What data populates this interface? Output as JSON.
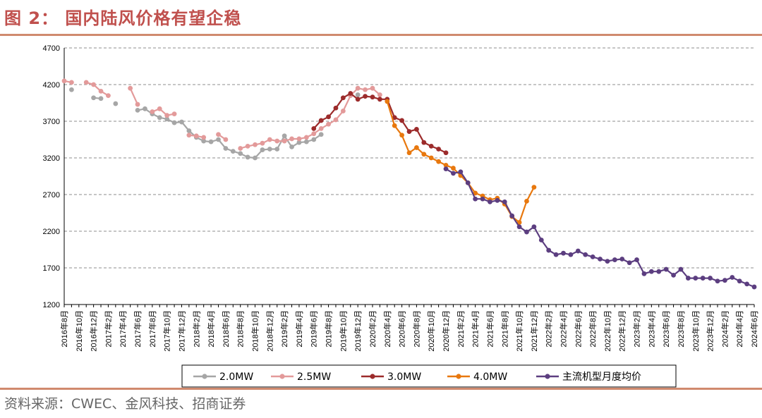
{
  "header": {
    "title": "图 2： 国内陆风价格有望企稳"
  },
  "footer": {
    "source": "资料来源：CWEC、金风科技、招商证券"
  },
  "colors": {
    "2.0MW": "#a6a6a6",
    "2.5MW": "#e39a9a",
    "3.0MW": "#9c2b2b",
    "4.0MW": "#e8780e",
    "mainstream": "#5c3e80",
    "accent": "#c0504d"
  },
  "chart_data": {
    "type": "line",
    "title": "",
    "xlabel": "",
    "ylabel": "",
    "ylim": [
      1200,
      4700
    ],
    "yticks": [
      1200,
      1700,
      2200,
      2700,
      3200,
      3700,
      4200,
      4700
    ],
    "grid": true,
    "legend_position": "bottom",
    "categories": [
      "2016年8月",
      "2016年9月",
      "2016年10月",
      "2016年11月",
      "2016年12月",
      "2017年1月",
      "2017年2月",
      "2017年3月",
      "2017年4月",
      "2017年5月",
      "2017年6月",
      "2017年7月",
      "2017年8月",
      "2017年9月",
      "2017年10月",
      "2017年11月",
      "2017年12月",
      "2018年1月",
      "2018年2月",
      "2018年3月",
      "2018年4月",
      "2018年5月",
      "2018年6月",
      "2018年7月",
      "2018年8月",
      "2018年9月",
      "2018年10月",
      "2018年11月",
      "2018年12月",
      "2019年1月",
      "2019年2月",
      "2019年3月",
      "2019年4月",
      "2019年5月",
      "2019年6月",
      "2019年7月",
      "2019年8月",
      "2019年9月",
      "2019年10月",
      "2019年11月",
      "2019年12月",
      "2020年1月",
      "2020年2月",
      "2020年3月",
      "2020年4月",
      "2020年5月",
      "2020年6月",
      "2020年7月",
      "2020年8月",
      "2020年9月",
      "2020年10月",
      "2020年11月",
      "2020年12月",
      "2021年1月",
      "2021年2月",
      "2021年3月",
      "2021年4月",
      "2021年5月",
      "2021年6月",
      "2021年7月",
      "2021年8月",
      "2021年9月",
      "2021年10月",
      "2021年11月",
      "2021年12月",
      "2022年1月",
      "2022年2月",
      "2022年3月",
      "2022年4月",
      "2022年5月",
      "2022年6月",
      "2022年7月",
      "2022年8月",
      "2022年9月",
      "2022年10月",
      "2022年11月",
      "2022年12月",
      "2023年1月",
      "2023年2月",
      "2023年3月",
      "2023年4月",
      "2023年5月",
      "2023年6月",
      "2023年7月",
      "2023年8月",
      "2023年9月",
      "2023年10月",
      "2023年11月",
      "2023年12月",
      "2024年1月",
      "2024年2月",
      "2024年3月",
      "2024年4月",
      "2024年5月",
      "2024年6月"
    ],
    "tick_labels": [
      "2016年8月",
      "2016年10月",
      "2016年12月",
      "2017年2月",
      "2017年4月",
      "2017年6月",
      "2017年8月",
      "2017年10月",
      "2017年12月",
      "2018年2月",
      "2018年4月",
      "2018年6月",
      "2018年8月",
      "2018年10月",
      "2018年12月",
      "2019年2月",
      "2019年4月",
      "2019年6月",
      "2019年8月",
      "2019年10月",
      "2019年12月",
      "2020年2月",
      "2020年4月",
      "2020年6月",
      "2020年8月",
      "2020年10月",
      "2020年12月",
      "2021年2月",
      "2021年4月",
      "2021年6月",
      "2021年8月",
      "2021年10月",
      "2021年12月",
      "2022年2月",
      "2022年4月",
      "2022年6月",
      "2022年8月",
      "2022年10月",
      "2022年12月",
      "2023年2月",
      "2023年4月",
      "2023年6月",
      "2023年8月",
      "2023年10月",
      "2023年12月",
      "2024年2月",
      "2024年4月",
      "2024年6月"
    ],
    "series": [
      {
        "name": "2.0MW",
        "color_key": "2.0MW",
        "values": [
          null,
          4130,
          null,
          null,
          4020,
          4010,
          null,
          3940,
          null,
          null,
          3850,
          3870,
          3800,
          3750,
          3730,
          3680,
          3690,
          3570,
          3480,
          3430,
          3420,
          3450,
          3330,
          3290,
          3260,
          3210,
          3200,
          3310,
          3320,
          3320,
          3500,
          3350,
          3410,
          3420,
          3450,
          3520,
          null,
          null,
          null,
          null,
          4060,
          null,
          null,
          null,
          null,
          null,
          null,
          null,
          null,
          null,
          null,
          null,
          null,
          null,
          null,
          null,
          null,
          null,
          null,
          null,
          null,
          null,
          null,
          null,
          null,
          null,
          null,
          null,
          null,
          null,
          null,
          null,
          null,
          null,
          null,
          null,
          null,
          null,
          null,
          null,
          null,
          null,
          null,
          null,
          null,
          null,
          null,
          null,
          null,
          null,
          null,
          null,
          null,
          null,
          null
        ]
      },
      {
        "name": "2.5MW",
        "color_key": "2.5MW",
        "values": [
          4250,
          4230,
          null,
          4230,
          4200,
          4110,
          4050,
          null,
          null,
          4150,
          3930,
          null,
          3830,
          3870,
          3780,
          3800,
          null,
          3510,
          3500,
          3480,
          null,
          3520,
          3450,
          null,
          3330,
          3360,
          3380,
          3400,
          3450,
          3430,
          3430,
          3460,
          3460,
          3480,
          3530,
          3600,
          3660,
          3720,
          3840,
          4050,
          4150,
          4130,
          4150,
          4060,
          null,
          null,
          null,
          null,
          null,
          null,
          null,
          null,
          null,
          null,
          null,
          null,
          null,
          null,
          null,
          null,
          null,
          null,
          null,
          null,
          null,
          null,
          null,
          null,
          null,
          null,
          null,
          null,
          null,
          null,
          null,
          null,
          null,
          null,
          null,
          null,
          null,
          null,
          null,
          null,
          null,
          null,
          null,
          null,
          null,
          null,
          null,
          null,
          null,
          null,
          null
        ]
      },
      {
        "name": "3.0MW",
        "color_key": "3.0MW",
        "values": [
          null,
          null,
          null,
          null,
          null,
          null,
          null,
          null,
          null,
          null,
          null,
          null,
          null,
          null,
          null,
          null,
          null,
          null,
          null,
          null,
          null,
          null,
          null,
          null,
          null,
          null,
          null,
          null,
          null,
          null,
          null,
          null,
          null,
          null,
          3600,
          3710,
          3760,
          3880,
          4020,
          4080,
          4000,
          4040,
          4030,
          4000,
          4000,
          3750,
          3710,
          3560,
          3590,
          3410,
          3360,
          3320,
          3270,
          null,
          null,
          null,
          null,
          null,
          null,
          null,
          null,
          null,
          null,
          null,
          null,
          null,
          null,
          null,
          null,
          null,
          null,
          null,
          null,
          null,
          null,
          null,
          null,
          null,
          null,
          null,
          null,
          null,
          null,
          null,
          null,
          null,
          null,
          null,
          null,
          null,
          null,
          null,
          null,
          null,
          null
        ]
      },
      {
        "name": "4.0MW",
        "color_key": "4.0MW",
        "values": [
          null,
          null,
          null,
          null,
          null,
          null,
          null,
          null,
          null,
          null,
          null,
          null,
          null,
          null,
          null,
          null,
          null,
          null,
          null,
          null,
          null,
          null,
          null,
          null,
          null,
          null,
          null,
          null,
          null,
          null,
          null,
          null,
          null,
          null,
          null,
          null,
          null,
          null,
          null,
          null,
          null,
          null,
          null,
          null,
          3970,
          3640,
          3510,
          3270,
          3340,
          3250,
          3200,
          3150,
          3100,
          3060,
          2960,
          2860,
          2720,
          2680,
          2630,
          2650,
          2570,
          2400,
          2320,
          2610,
          2800,
          null,
          null,
          null,
          null,
          null,
          null,
          null,
          null,
          null,
          null,
          null,
          null,
          null,
          null,
          null,
          null,
          null,
          null,
          null,
          null,
          null,
          null,
          null,
          null,
          null,
          null,
          null,
          null,
          null,
          null
        ]
      },
      {
        "name": "主流机型月度均价",
        "color_key": "mainstream",
        "values": [
          null,
          null,
          null,
          null,
          null,
          null,
          null,
          null,
          null,
          null,
          null,
          null,
          null,
          null,
          null,
          null,
          null,
          null,
          null,
          null,
          null,
          null,
          null,
          null,
          null,
          null,
          null,
          null,
          null,
          null,
          null,
          null,
          null,
          null,
          null,
          null,
          null,
          null,
          null,
          null,
          null,
          null,
          null,
          null,
          null,
          null,
          null,
          null,
          null,
          null,
          null,
          null,
          3050,
          2990,
          3010,
          2860,
          2640,
          2640,
          2600,
          2620,
          2600,
          2410,
          2260,
          2190,
          2260,
          2080,
          1940,
          1880,
          1900,
          1880,
          1930,
          1880,
          1850,
          1820,
          1790,
          1810,
          1820,
          1770,
          1810,
          1620,
          1650,
          1650,
          1680,
          1600,
          1680,
          1560,
          1560,
          1560,
          1560,
          1520,
          1530,
          1570,
          1520,
          1480,
          1440
        ]
      }
    ]
  }
}
